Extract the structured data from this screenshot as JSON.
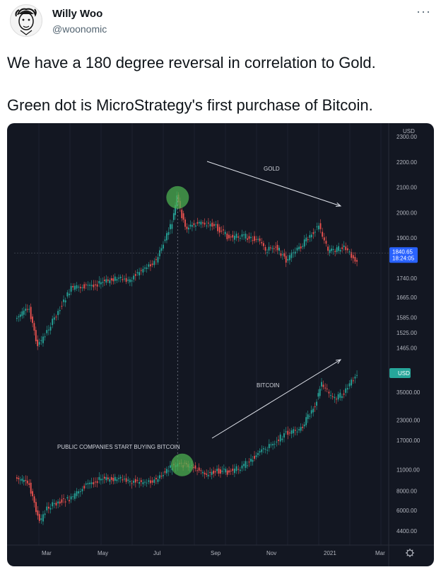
{
  "author": {
    "name": "Willy Woo",
    "handle": "@woonomic"
  },
  "menu_icon": "more-dots-icon",
  "tweet": {
    "line1": "We have a 180 degree reversal in correlation to Gold.",
    "line2": "Green dot is MicroStrategy's first purchase of Bitcoin."
  },
  "colors": {
    "chart_bg": "#131722",
    "up": "#26a69a",
    "down": "#ef5350",
    "marker": "#4caf50"
  },
  "chart_data": [
    {
      "type": "candlestick",
      "title": "GOLD",
      "unit": "USD",
      "y_ticks": [
        2300,
        2200,
        2100,
        2000,
        1900,
        1740,
        1665,
        1585,
        1525,
        1465
      ],
      "y_tick_labels": [
        "2300.00",
        "2200.00",
        "2100.00",
        "2000.00",
        "1900.00",
        "1740.00",
        "1665.00",
        "1585.00",
        "1525.00",
        "1465.00"
      ],
      "last_price": "1840.65",
      "countdown": "18:24:05",
      "ylim": [
        1430,
        2320
      ],
      "x": [
        "2020-02-15",
        "2020-03-01",
        "2020-03-10",
        "2020-03-20",
        "2020-04-01",
        "2020-04-15",
        "2020-05-01",
        "2020-05-15",
        "2020-06-01",
        "2020-06-15",
        "2020-07-01",
        "2020-07-15",
        "2020-08-01",
        "2020-08-06",
        "2020-08-15",
        "2020-09-01",
        "2020-09-15",
        "2020-10-01",
        "2020-10-15",
        "2020-11-01",
        "2020-11-09",
        "2020-11-20",
        "2020-12-01",
        "2020-12-15",
        "2021-01-05",
        "2021-01-15",
        "2021-02-01",
        "2021-02-15"
      ],
      "values": [
        1580,
        1620,
        1470,
        1530,
        1610,
        1700,
        1710,
        1720,
        1740,
        1730,
        1780,
        1810,
        1960,
        2060,
        1940,
        1960,
        1950,
        1900,
        1910,
        1890,
        1850,
        1870,
        1810,
        1860,
        1950,
        1850,
        1860,
        1810
      ],
      "marker": {
        "x": "2020-08-06",
        "value": 2060
      },
      "annotation": "GOLD",
      "trend_arrow": "down"
    },
    {
      "type": "candlestick",
      "title": "BITCOIN",
      "unit": "USD",
      "y_ticks": [
        35000,
        23000,
        17000,
        11000,
        8000,
        6000,
        4400
      ],
      "y_tick_labels": [
        "35000.00",
        "23000.00",
        "17000.00",
        "11000.00",
        "8000.00",
        "6000.00",
        "4400.00"
      ],
      "scale": "log",
      "ylim": [
        3800,
        48000
      ],
      "x": [
        "2020-02-15",
        "2020-03-01",
        "2020-03-12",
        "2020-03-20",
        "2020-04-01",
        "2020-04-15",
        "2020-05-01",
        "2020-05-15",
        "2020-06-01",
        "2020-06-15",
        "2020-07-01",
        "2020-07-15",
        "2020-08-01",
        "2020-08-11",
        "2020-08-20",
        "2020-09-05",
        "2020-09-20",
        "2020-10-01",
        "2020-10-15",
        "2020-11-01",
        "2020-11-15",
        "2020-12-01",
        "2020-12-15",
        "2021-01-01",
        "2021-01-08",
        "2021-01-20",
        "2021-02-01",
        "2021-02-15"
      ],
      "values": [
        9800,
        8800,
        5000,
        6200,
        6800,
        7100,
        8800,
        9500,
        9600,
        9300,
        9200,
        9400,
        11500,
        11800,
        11700,
        10300,
        10800,
        10600,
        11500,
        13800,
        16000,
        19000,
        19500,
        29000,
        40000,
        32000,
        34000,
        47000
      ],
      "marker": {
        "x": "2020-08-11",
        "value": 11800
      },
      "annotation": "PUBLIC COMPANIES START BUYING BITCOIN",
      "annotation2": "BITCOIN",
      "trend_arrow": "up"
    }
  ],
  "x_axis": {
    "labels": [
      "Mar",
      "May",
      "Jul",
      "Sep",
      "Nov",
      "2021",
      "Mar"
    ]
  },
  "settings_icon": "gear-icon"
}
